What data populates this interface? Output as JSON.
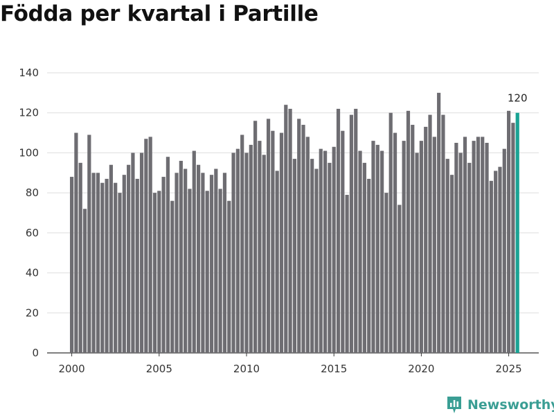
{
  "title": "Födda per kvartal i Partille",
  "brand": {
    "name": "Newsworthy",
    "color": "#3a9e94"
  },
  "chart_data": {
    "type": "bar",
    "title": "Födda per kvartal i Partille",
    "xlabel": "",
    "ylabel": "",
    "ylim": [
      0,
      140
    ],
    "yticks": [
      0,
      20,
      40,
      60,
      80,
      100,
      120,
      140
    ],
    "xticks": [
      2000,
      2005,
      2010,
      2015,
      2020,
      2025
    ],
    "grid": true,
    "bar_color": "#6e6d72",
    "highlight_color": "#1aa394",
    "start_year": 2000,
    "highlight_label": "120",
    "values": [
      88,
      110,
      95,
      72,
      109,
      90,
      90,
      85,
      87,
      94,
      85,
      80,
      89,
      94,
      100,
      87,
      100,
      107,
      108,
      80,
      81,
      88,
      98,
      76,
      90,
      96,
      92,
      82,
      101,
      94,
      90,
      81,
      89,
      92,
      82,
      90,
      76,
      100,
      102,
      109,
      100,
      104,
      116,
      106,
      99,
      117,
      111,
      91,
      110,
      124,
      122,
      97,
      117,
      114,
      108,
      97,
      92,
      102,
      101,
      95,
      103,
      122,
      111,
      79,
      119,
      122,
      101,
      95,
      87,
      106,
      104,
      101,
      80,
      120,
      110,
      74,
      106,
      121,
      114,
      100,
      106,
      113,
      119,
      108,
      130,
      119,
      97,
      89,
      105,
      100,
      108,
      95,
      106,
      108,
      108,
      105,
      86,
      91,
      93,
      102,
      121,
      115,
      120
    ]
  }
}
